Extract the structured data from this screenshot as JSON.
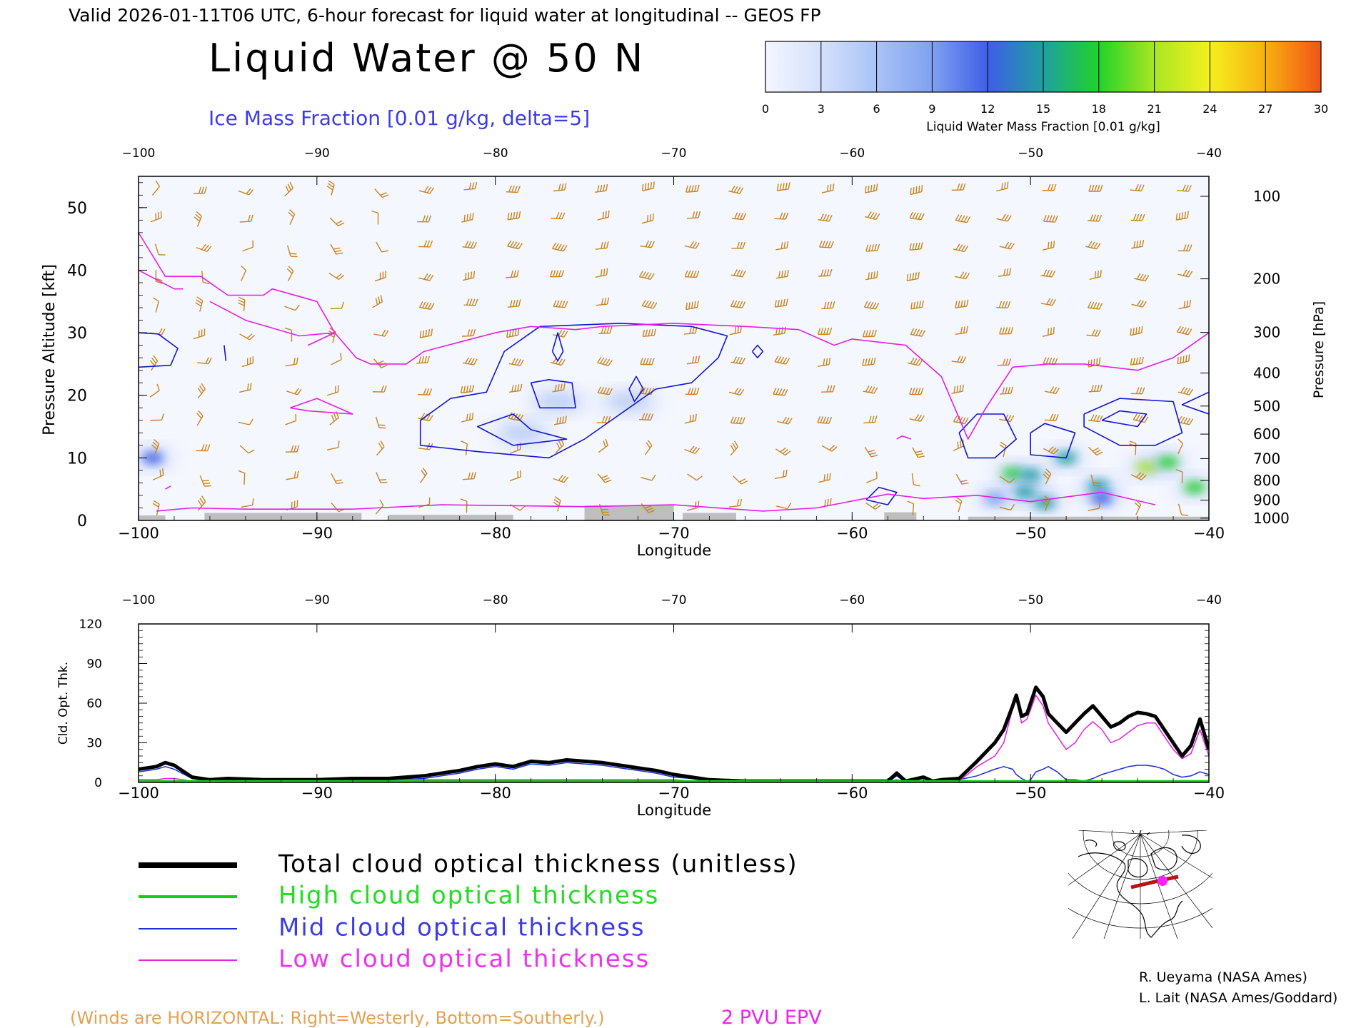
{
  "header": {
    "valid_line": "Valid 2026-01-11T06 UTC, 6-hour forecast for liquid water at longitudinal -- GEOS FP",
    "title": "Liquid Water @ 50 N",
    "subtitle": "Ice Mass Fraction [0.01 g/kg, delta=5]"
  },
  "colorbar": {
    "ticks": [
      "0",
      "3",
      "6",
      "9",
      "12",
      "15",
      "18",
      "21",
      "24",
      "27",
      "30"
    ],
    "label": "Liquid Water Mass Fraction [0.01 g/kg]",
    "colors": [
      "#f4f6fe",
      "#d4e0fb",
      "#a9c3f6",
      "#7fa1f0",
      "#3f5ee6",
      "#1ea0a0",
      "#22d22a",
      "#a8e624",
      "#f4f01e",
      "#f8b010",
      "#f05418"
    ]
  },
  "colors": {
    "wind_barbs": "#c8841e",
    "ice_contour": "#1414d2",
    "epv_line": "#e61ee6",
    "terrain": "#bebebe",
    "total_line": "#000000",
    "high_line": "#10d010",
    "mid_line": "#1a2ee0",
    "low_line": "#e61ee6"
  },
  "chart_data": [
    {
      "type": "heatmap",
      "title": "Liquid Water @ 50 N",
      "xlabel": "Longitude",
      "ylabel_left": "Pressure Altitude [kft]",
      "ylabel_right": "Pressure [hPa]",
      "xlim": [
        -100,
        -40
      ],
      "ylim": [
        0,
        55
      ],
      "x_ticks": [
        "-100",
        "-90",
        "-80",
        "-70",
        "-60",
        "-50",
        "-40"
      ],
      "y_ticks_left": [
        "0",
        "10",
        "20",
        "30",
        "40",
        "50"
      ],
      "pressure_ticks": [
        {
          "hPa": 100,
          "label": "100"
        },
        {
          "hPa": 200,
          "label": "200"
        },
        {
          "hPa": 300,
          "label": "300"
        },
        {
          "hPa": 400,
          "label": "400"
        },
        {
          "hPa": 500,
          "label": "500"
        },
        {
          "hPa": 600,
          "label": "600"
        },
        {
          "hPa": 700,
          "label": "700"
        },
        {
          "hPa": 800,
          "label": "800"
        },
        {
          "hPa": 900,
          "label": "900"
        },
        {
          "hPa": 1000,
          "label": "1000"
        }
      ],
      "liquid_water_blobs": [
        {
          "lon": -99.2,
          "alt": 10,
          "value": 10
        },
        {
          "lon": -51.0,
          "alt": 7.5,
          "value": 16
        },
        {
          "lon": -50.0,
          "alt": 7.2,
          "value": 13
        },
        {
          "lon": -48.0,
          "alt": 10,
          "value": 14
        },
        {
          "lon": -50.3,
          "alt": 4.5,
          "value": 12
        },
        {
          "lon": -49.2,
          "alt": 2.8,
          "value": 14
        },
        {
          "lon": -46.2,
          "alt": 5.5,
          "value": 12
        },
        {
          "lon": -46.0,
          "alt": 3.5,
          "value": 11
        },
        {
          "lon": -43.5,
          "alt": 8.5,
          "value": 18
        },
        {
          "lon": -42.3,
          "alt": 9.3,
          "value": 15
        },
        {
          "lon": -40.8,
          "alt": 5.3,
          "value": 17
        },
        {
          "lon": -52.0,
          "alt": 3.5,
          "value": 8
        },
        {
          "lon": -78.5,
          "alt": 14,
          "value": 4
        },
        {
          "lon": -76.5,
          "alt": 19,
          "value": 3
        },
        {
          "lon": -72.5,
          "alt": 19,
          "value": 3
        }
      ],
      "ice_contours": [
        [
          [
            -84.2,
            16
          ],
          [
            -82.5,
            19.5
          ],
          [
            -80.5,
            20.5
          ],
          [
            -79.5,
            27
          ],
          [
            -77.5,
            31
          ],
          [
            -73,
            31.5
          ],
          [
            -69,
            31
          ],
          [
            -67,
            29.5
          ],
          [
            -67.5,
            26
          ],
          [
            -69,
            22
          ],
          [
            -71,
            21
          ],
          [
            -73,
            17
          ],
          [
            -75,
            13
          ],
          [
            -77,
            10
          ],
          [
            -81,
            11
          ],
          [
            -84.2,
            12
          ],
          [
            -84.2,
            16
          ]
        ],
        [
          [
            -79,
            17
          ],
          [
            -81,
            15
          ],
          [
            -79,
            12
          ],
          [
            -76,
            13
          ],
          [
            -78,
            14.5
          ],
          [
            -79,
            17
          ]
        ],
        [
          [
            -78,
            22
          ],
          [
            -77.5,
            18
          ],
          [
            -75.5,
            18
          ],
          [
            -75.7,
            22
          ],
          [
            -77,
            22.5
          ],
          [
            -78,
            22
          ]
        ],
        [
          [
            -76.8,
            27
          ],
          [
            -76.5,
            25.5
          ],
          [
            -76.2,
            27
          ],
          [
            -76.5,
            30
          ],
          [
            -76.8,
            27
          ]
        ],
        [
          [
            -72.5,
            21
          ],
          [
            -72.2,
            19
          ],
          [
            -71.7,
            21
          ],
          [
            -72.1,
            23
          ],
          [
            -72.5,
            21
          ]
        ],
        [
          [
            -100,
            24.5
          ],
          [
            -98.2,
            24.8
          ],
          [
            -97.8,
            27.5
          ],
          [
            -98.9,
            29.8
          ],
          [
            -100,
            30
          ]
        ],
        [
          [
            -65.6,
            27
          ],
          [
            -65.3,
            26
          ],
          [
            -65,
            27
          ],
          [
            -65.3,
            28
          ],
          [
            -65.6,
            27
          ]
        ],
        [
          [
            -54,
            14
          ],
          [
            -53,
            17
          ],
          [
            -51.5,
            17
          ],
          [
            -50.8,
            13
          ],
          [
            -52,
            10
          ],
          [
            -53.5,
            10
          ],
          [
            -54,
            14
          ]
        ],
        [
          [
            -50,
            14
          ],
          [
            -49.2,
            15.5
          ],
          [
            -47.5,
            14
          ],
          [
            -48,
            10
          ],
          [
            -50,
            10.5
          ],
          [
            -50,
            14
          ]
        ],
        [
          [
            -47,
            17
          ],
          [
            -45,
            19.5
          ],
          [
            -42,
            19
          ],
          [
            -41.5,
            14
          ],
          [
            -43,
            12
          ],
          [
            -45,
            12
          ],
          [
            -47,
            15
          ],
          [
            -47,
            17
          ]
        ],
        [
          [
            -46,
            16
          ],
          [
            -45,
            17.5
          ],
          [
            -43.5,
            17
          ],
          [
            -44,
            15
          ],
          [
            -46,
            16
          ]
        ],
        [
          [
            -40,
            17
          ],
          [
            -41.5,
            18.5
          ],
          [
            -40,
            20.5
          ]
        ],
        [
          [
            -59.2,
            3.3
          ],
          [
            -58.5,
            5.3
          ],
          [
            -57.5,
            4.5
          ],
          [
            -58,
            2.5
          ],
          [
            -59.2,
            3.3
          ]
        ],
        [
          [
            -95.2,
            28
          ],
          [
            -95.1,
            25.5
          ]
        ]
      ],
      "epv_2pvu": [
        [
          [
            -100,
            46
          ],
          [
            -98.5,
            39
          ],
          [
            -96.5,
            39
          ],
          [
            -95,
            36
          ],
          [
            -93,
            36
          ],
          [
            -92.5,
            37
          ],
          [
            -90,
            35
          ],
          [
            -89,
            30
          ],
          [
            -87.8,
            26
          ],
          [
            -87,
            25
          ],
          [
            -85,
            25
          ],
          [
            -84,
            27
          ],
          [
            -82,
            28.5
          ],
          [
            -80,
            30
          ],
          [
            -78,
            31
          ],
          [
            -75.5,
            30.5
          ],
          [
            -74,
            31
          ],
          [
            -70,
            31.5
          ],
          [
            -66,
            31
          ],
          [
            -63,
            30.5
          ],
          [
            -61,
            28
          ],
          [
            -60,
            29
          ],
          [
            -57,
            28
          ],
          [
            -55,
            23
          ],
          [
            -53.5,
            13
          ],
          [
            -52.5,
            18
          ],
          [
            -51,
            24.5
          ],
          [
            -49,
            25
          ],
          [
            -47,
            25
          ],
          [
            -44,
            24
          ],
          [
            -42,
            26
          ],
          [
            -40,
            30
          ]
        ],
        [
          [
            -100,
            40
          ],
          [
            -98,
            37
          ],
          [
            -97.5,
            37
          ]
        ],
        [
          [
            -90.5,
            28
          ],
          [
            -89,
            30
          ],
          [
            -91,
            29.5
          ],
          [
            -94,
            32
          ],
          [
            -96,
            35
          ]
        ],
        [
          [
            -91.5,
            18
          ],
          [
            -90,
            19.5
          ],
          [
            -88,
            17
          ],
          [
            -90.5,
            17.5
          ],
          [
            -91.5,
            18
          ]
        ],
        [
          [
            -99,
            1.5
          ],
          [
            -97,
            2
          ],
          [
            -94,
            1.8
          ],
          [
            -88,
            1.8
          ],
          [
            -83,
            2.5
          ],
          [
            -75,
            2.2
          ],
          [
            -70,
            2.5
          ],
          [
            -65,
            1.5
          ],
          [
            -62,
            2
          ],
          [
            -58,
            4.2
          ],
          [
            -56,
            3.5
          ],
          [
            -53,
            4
          ],
          [
            -50,
            3
          ],
          [
            -46,
            4.5
          ],
          [
            -43,
            2.5
          ]
        ],
        [
          [
            -98.5,
            5
          ],
          [
            -98.2,
            5.5
          ]
        ],
        [
          [
            -57.5,
            13
          ],
          [
            -57.2,
            13.5
          ],
          [
            -56.7,
            13
          ]
        ]
      ],
      "terrain_segments": [
        {
          "lon": [
            -100,
            -98.5
          ],
          "top_alt": 0.8
        },
        {
          "lon": [
            -96.3,
            -87.5
          ],
          "top_alt": 1.2
        },
        {
          "lon": [
            -86,
            -79
          ],
          "top_alt": 0.9
        },
        {
          "lon": [
            -75,
            -70
          ],
          "top_alt": 2.4
        },
        {
          "lon": [
            -69.5,
            -66.5
          ],
          "top_alt": 1.2
        },
        {
          "lon": [
            -58.2,
            -56.4
          ],
          "top_alt": 1.3
        },
        {
          "lon": [
            -53.5,
            -40
          ],
          "top_alt": 0.6
        }
      ]
    },
    {
      "type": "line",
      "xlabel": "Longitude",
      "ylabel": "Cld. Opt. Thk.",
      "xlim": [
        -100,
        -40
      ],
      "ylim": [
        0,
        120
      ],
      "x_ticks": [
        "-100",
        "-90",
        "-80",
        "-70",
        "-60",
        "-50",
        "-40"
      ],
      "y_ticks": [
        "0",
        "30",
        "60",
        "90",
        "120"
      ],
      "x": [
        -100,
        -99,
        -98.5,
        -98,
        -97,
        -96,
        -95,
        -93,
        -90,
        -88,
        -86,
        -84,
        -82,
        -81,
        -80,
        -79,
        -78,
        -77,
        -76,
        -75,
        -74,
        -73,
        -72,
        -71,
        -70,
        -69,
        -68,
        -66,
        -64,
        -60,
        -58,
        -57.5,
        -57,
        -56,
        -55.5,
        -55,
        -54,
        -53,
        -52,
        -51.5,
        -51,
        -50.8,
        -50.5,
        -50.2,
        -50,
        -49.7,
        -49.3,
        -49,
        -48.5,
        -48,
        -47.5,
        -47,
        -46.5,
        -46,
        -45.5,
        -45,
        -44.5,
        -44,
        -43.5,
        -43,
        -42.5,
        -42,
        -41.5,
        -41,
        -40.5,
        -40
      ],
      "series": [
        {
          "name": "Total cloud optical thickness (unitless)",
          "values": [
            10,
            12,
            15,
            13,
            4,
            2,
            3,
            2,
            2,
            3,
            3,
            5,
            9,
            12,
            14,
            12,
            16,
            15,
            17,
            16,
            15,
            13,
            11,
            9,
            6,
            4,
            2,
            1,
            1,
            1,
            1,
            7,
            1,
            4,
            1,
            2,
            3,
            16,
            30,
            40,
            58,
            66,
            50,
            52,
            60,
            72,
            65,
            52,
            45,
            38,
            45,
            52,
            58,
            50,
            42,
            45,
            50,
            53,
            52,
            50,
            40,
            30,
            20,
            28,
            48,
            25
          ],
          "width": 5
        },
        {
          "name": "High cloud optical thickness",
          "values": [
            1,
            1,
            1,
            1,
            1,
            1,
            1,
            1,
            1,
            1,
            1,
            1,
            1,
            1,
            1,
            1,
            1,
            1,
            1,
            1,
            1,
            1,
            1,
            1,
            1,
            1,
            1,
            1,
            1,
            1,
            1,
            1,
            1,
            1,
            1,
            1,
            1,
            1,
            1,
            1,
            1,
            1,
            1,
            1,
            1,
            1,
            1,
            1,
            1,
            1,
            1,
            1,
            1,
            1,
            1,
            1,
            1,
            1,
            1,
            1,
            1,
            1,
            1,
            1,
            1,
            1
          ],
          "width": 3
        },
        {
          "name": "Mid cloud optical thickness",
          "values": [
            8,
            10,
            12,
            10,
            3,
            1,
            2,
            1,
            1,
            2,
            2,
            3,
            7,
            10,
            12,
            10,
            14,
            13,
            15,
            14,
            13,
            11,
            9,
            7,
            4,
            3,
            1,
            0,
            0,
            0,
            0,
            5,
            0,
            3,
            0,
            1,
            2,
            5,
            10,
            12,
            10,
            6,
            3,
            1,
            2,
            8,
            10,
            12,
            8,
            2,
            2,
            1,
            3,
            6,
            8,
            10,
            12,
            13,
            13,
            12,
            10,
            6,
            4,
            5,
            8,
            6
          ],
          "width": 1.5
        },
        {
          "name": "Low cloud optical thickness",
          "values": [
            2,
            2,
            3,
            3,
            1,
            1,
            1,
            1,
            1,
            1,
            1,
            2,
            2,
            2,
            2,
            2,
            2,
            2,
            2,
            2,
            2,
            2,
            2,
            2,
            2,
            1,
            1,
            1,
            1,
            1,
            1,
            2,
            1,
            1,
            1,
            1,
            1,
            12,
            20,
            30,
            56,
            64,
            45,
            48,
            55,
            66,
            58,
            45,
            35,
            25,
            30,
            40,
            46,
            40,
            30,
            33,
            38,
            43,
            45,
            45,
            35,
            25,
            18,
            22,
            40,
            20
          ],
          "width": 1.5
        }
      ]
    }
  ],
  "legend": {
    "total": "Total cloud optical thickness (unitless)",
    "high": "High cloud optical thickness",
    "mid": "Mid cloud optical thickness",
    "low": "Low cloud optical thickness"
  },
  "credits": {
    "line1": "R. Ueyama (NASA Ames)",
    "line2": "L. Lait (NASA Ames/Goddard)"
  },
  "footer": {
    "winds_note": "(Winds are HORIZONTAL: Right=Westerly, Bottom=Southerly.)",
    "epv_note": "2 PVU EPV"
  }
}
